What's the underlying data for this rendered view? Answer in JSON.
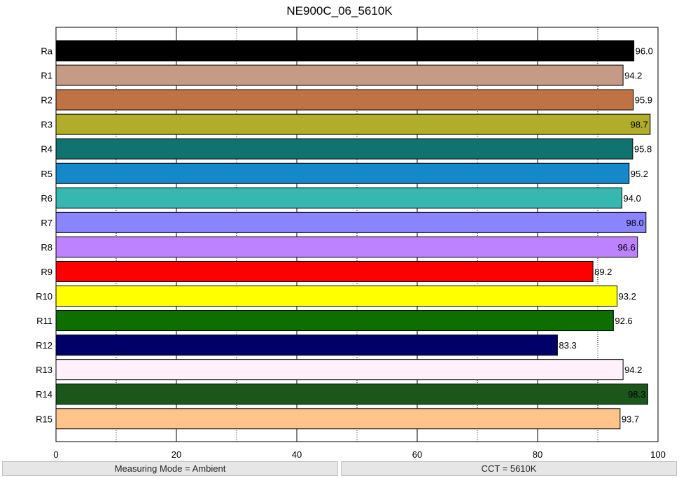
{
  "chart_data": {
    "type": "bar",
    "orientation": "horizontal",
    "title": "NE900C_06_5610K",
    "categories": [
      "Ra",
      "R1",
      "R2",
      "R3",
      "R4",
      "R5",
      "R6",
      "R7",
      "R8",
      "R9",
      "R10",
      "R11",
      "R12",
      "R13",
      "R14",
      "R15"
    ],
    "values": [
      96.0,
      94.2,
      95.9,
      98.7,
      95.8,
      95.2,
      94.0,
      98.0,
      96.6,
      89.2,
      93.2,
      92.6,
      83.3,
      94.2,
      98.3,
      93.7
    ],
    "value_labels": [
      "96.0",
      "94.2",
      "95.9",
      "98.7",
      "95.8",
      "95.2",
      "94.0",
      "98.0",
      "96.6",
      "89.2",
      "93.2",
      "92.6",
      "83.3",
      "94.2",
      "98.3",
      "93.7"
    ],
    "colors": [
      "#000000",
      "#c59b86",
      "#bf7243",
      "#b0ad2a",
      "#117370",
      "#1488c9",
      "#36b8b0",
      "#8a85ff",
      "#bd82ff",
      "#ff0000",
      "#ffff00",
      "#0e6e00",
      "#000068",
      "#fff0fc",
      "#1b561b",
      "#ffc48a"
    ],
    "xlim": [
      0,
      100
    ],
    "xticks": [
      0,
      20,
      40,
      60,
      80,
      100
    ],
    "xtick_labels": [
      "0",
      "20",
      "40",
      "60",
      "80",
      "100"
    ],
    "minor_gridlines": [
      10,
      30,
      50,
      70,
      90
    ],
    "grid": true
  },
  "status": {
    "left": "Measuring Mode = Ambient",
    "right": "CCT = 5610K"
  }
}
